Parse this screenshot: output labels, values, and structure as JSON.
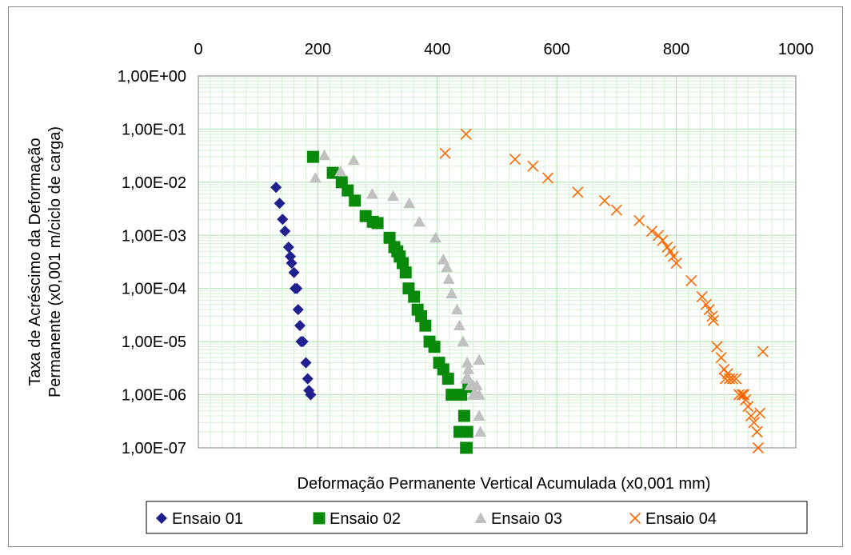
{
  "chart_data": {
    "type": "scatter",
    "xlabel": "Deformação Permanente Vertical Acumulada (x0,001 mm)",
    "ylabel": [
      "Taxa de Acréscimo da Deformação",
      "Permanente (x0,001 m/ciclo de carga)"
    ],
    "xlim": [
      0,
      1000
    ],
    "ylim": [
      1e-07,
      1
    ],
    "yscale": "log",
    "x_axis_position": "top",
    "x_ticks": [
      0,
      200,
      400,
      600,
      800,
      1000
    ],
    "x_tick_labels": [
      "0",
      "200",
      "400",
      "600",
      "800",
      "1000"
    ],
    "y_ticks": [
      1,
      0.1,
      0.01,
      0.001,
      0.0001,
      1e-05,
      1e-06,
      1e-07
    ],
    "y_tick_labels": [
      "1,00E+00",
      "1,00E-01",
      "1,00E-02",
      "1,00E-03",
      "1,00E-04",
      "1,00E-05",
      "1,00E-06",
      "1,00E-07"
    ],
    "grid": true,
    "legend_position": "bottom",
    "series": [
      {
        "name": "Ensaio 01",
        "marker": "diamond",
        "color": "#1f1f8f",
        "x": [
          130,
          136,
          141,
          145,
          151,
          154,
          156,
          160,
          162,
          165,
          167,
          170,
          172,
          175,
          180,
          183,
          185,
          188
        ],
        "y": [
          0.008,
          0.004,
          0.002,
          0.0012,
          0.0006,
          0.0004,
          0.0003,
          0.0002,
          0.0001,
          0.0001,
          4e-05,
          2e-05,
          1e-05,
          1e-05,
          4e-06,
          2e-06,
          1.2e-06,
          1e-06
        ]
      },
      {
        "name": "Ensaio 02",
        "marker": "square",
        "color": "#0a8a0a",
        "x": [
          192,
          225,
          240,
          250,
          262,
          280,
          292,
          300,
          320,
          328,
          333,
          337,
          342,
          347,
          352,
          361,
          367,
          373,
          380,
          387,
          395,
          403,
          410,
          418,
          424,
          440,
          445,
          450,
          449,
          452,
          437,
          442,
          448
        ],
        "y": [
          0.03,
          0.015,
          0.01,
          0.007,
          0.0045,
          0.0023,
          0.0018,
          0.0017,
          0.0009,
          0.0006,
          0.0005,
          0.0004,
          0.0003,
          0.0002,
          0.0001,
          7e-05,
          4e-05,
          3e-05,
          2e-05,
          1e-05,
          8e-06,
          4e-06,
          3e-06,
          2e-06,
          1e-06,
          1e-06,
          4e-07,
          2e-07,
          1e-07,
          1.4e-06,
          2e-07,
          2e-07,
          1e-07
        ]
      },
      {
        "name": "Ensaio 03",
        "marker": "triangle",
        "color": "#c0c0c0",
        "x": [
          196,
          211,
          238,
          260,
          291,
          326,
          353,
          370,
          397,
          410,
          416,
          419,
          424,
          433,
          437,
          443,
          450,
          452,
          452,
          460,
          462,
          470,
          448,
          455,
          460,
          465,
          470,
          472,
          466,
          470
        ],
        "y": [
          0.012,
          0.032,
          0.016,
          0.026,
          0.006,
          0.0055,
          0.004,
          0.0018,
          0.0009,
          0.00035,
          0.00025,
          0.00015,
          8e-05,
          4e-05,
          2e-05,
          1e-05,
          4e-06,
          3e-06,
          2e-06,
          1.5e-06,
          1e-06,
          4.5e-06,
          2e-06,
          1.5e-06,
          1e-06,
          1e-06,
          4e-07,
          2e-07,
          1.5e-06,
          1e-06
        ]
      },
      {
        "name": "Ensaio 04",
        "marker": "x",
        "color": "#ff6600",
        "x": [
          413,
          448,
          530,
          560,
          585,
          635,
          680,
          700,
          738,
          759,
          770,
          777,
          785,
          790,
          795,
          800,
          825,
          843,
          850,
          855,
          860,
          862,
          868,
          875,
          880,
          882,
          886,
          889,
          894,
          900,
          905,
          910,
          913,
          916,
          920,
          925,
          930,
          935,
          937,
          940,
          945
        ],
        "y": [
          0.035,
          0.08,
          0.027,
          0.02,
          0.012,
          0.0065,
          0.0045,
          0.003,
          0.0019,
          0.0012,
          0.001,
          0.0008,
          0.0006,
          0.0005,
          0.0004,
          0.0003,
          0.00014,
          7e-05,
          5e-05,
          4e-05,
          3e-05,
          2.5e-05,
          8e-06,
          5e-06,
          3e-06,
          2e-06,
          2.5e-06,
          2e-06,
          2e-06,
          2e-06,
          1e-06,
          1e-06,
          1e-06,
          8e-07,
          6e-07,
          4e-07,
          3e-07,
          2e-07,
          1e-07,
          4.5e-07,
          6.5e-06
        ]
      }
    ]
  }
}
